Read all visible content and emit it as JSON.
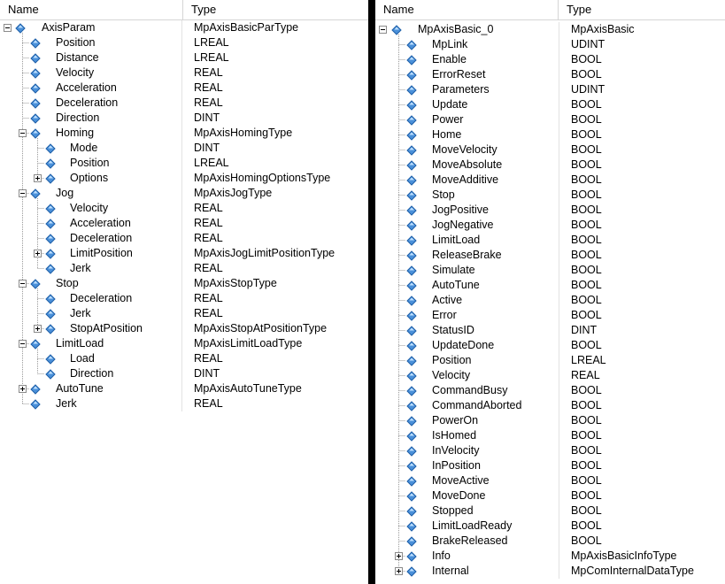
{
  "left_panel": {
    "columns": {
      "name": "Name",
      "type": "Type"
    },
    "rows": [
      {
        "name": "AxisParam",
        "type": "MpAxisBasicParType",
        "level": 0,
        "toggle": "minus",
        "last": false
      },
      {
        "name": "Position",
        "type": "LREAL",
        "level": 1,
        "toggle": "",
        "last": false
      },
      {
        "name": "Distance",
        "type": "LREAL",
        "level": 1,
        "toggle": "",
        "last": false
      },
      {
        "name": "Velocity",
        "type": "REAL",
        "level": 1,
        "toggle": "",
        "last": false
      },
      {
        "name": "Acceleration",
        "type": "REAL",
        "level": 1,
        "toggle": "",
        "last": false
      },
      {
        "name": "Deceleration",
        "type": "REAL",
        "level": 1,
        "toggle": "",
        "last": false
      },
      {
        "name": "Direction",
        "type": "DINT",
        "level": 1,
        "toggle": "",
        "last": false
      },
      {
        "name": "Homing",
        "type": "MpAxisHomingType",
        "level": 1,
        "toggle": "minus",
        "last": false
      },
      {
        "name": "Mode",
        "type": "DINT",
        "level": 2,
        "toggle": "",
        "last": false
      },
      {
        "name": "Position",
        "type": "LREAL",
        "level": 2,
        "toggle": "",
        "last": false
      },
      {
        "name": "Options",
        "type": "MpAxisHomingOptionsType",
        "level": 2,
        "toggle": "plus",
        "last": true
      },
      {
        "name": "Jog",
        "type": "MpAxisJogType",
        "level": 1,
        "toggle": "minus",
        "last": false
      },
      {
        "name": "Velocity",
        "type": "REAL",
        "level": 2,
        "toggle": "",
        "last": false
      },
      {
        "name": "Acceleration",
        "type": "REAL",
        "level": 2,
        "toggle": "",
        "last": false
      },
      {
        "name": "Deceleration",
        "type": "REAL",
        "level": 2,
        "toggle": "",
        "last": false
      },
      {
        "name": "LimitPosition",
        "type": "MpAxisJogLimitPositionType",
        "level": 2,
        "toggle": "plus",
        "last": false
      },
      {
        "name": "Jerk",
        "type": "REAL",
        "level": 2,
        "toggle": "",
        "last": true
      },
      {
        "name": "Stop",
        "type": "MpAxisStopType",
        "level": 1,
        "toggle": "minus",
        "last": false
      },
      {
        "name": "Deceleration",
        "type": "REAL",
        "level": 2,
        "toggle": "",
        "last": false
      },
      {
        "name": "Jerk",
        "type": "REAL",
        "level": 2,
        "toggle": "",
        "last": false
      },
      {
        "name": "StopAtPosition",
        "type": "MpAxisStopAtPositionType",
        "level": 2,
        "toggle": "plus",
        "last": true
      },
      {
        "name": "LimitLoad",
        "type": "MpAxisLimitLoadType",
        "level": 1,
        "toggle": "minus",
        "last": false
      },
      {
        "name": "Load",
        "type": "REAL",
        "level": 2,
        "toggle": "",
        "last": false
      },
      {
        "name": "Direction",
        "type": "DINT",
        "level": 2,
        "toggle": "",
        "last": true
      },
      {
        "name": "AutoTune",
        "type": "MpAxisAutoTuneType",
        "level": 1,
        "toggle": "plus",
        "last": false
      },
      {
        "name": "Jerk",
        "type": "REAL",
        "level": 1,
        "toggle": "",
        "last": true
      }
    ]
  },
  "right_panel": {
    "columns": {
      "name": "Name",
      "type": "Type"
    },
    "rows": [
      {
        "name": "MpAxisBasic_0",
        "type": "MpAxisBasic",
        "level": 0,
        "toggle": "minus",
        "last": false
      },
      {
        "name": "MpLink",
        "type": "UDINT",
        "level": 1,
        "toggle": "",
        "last": false
      },
      {
        "name": "Enable",
        "type": "BOOL",
        "level": 1,
        "toggle": "",
        "last": false
      },
      {
        "name": "ErrorReset",
        "type": "BOOL",
        "level": 1,
        "toggle": "",
        "last": false
      },
      {
        "name": "Parameters",
        "type": "UDINT",
        "level": 1,
        "toggle": "",
        "last": false
      },
      {
        "name": "Update",
        "type": "BOOL",
        "level": 1,
        "toggle": "",
        "last": false
      },
      {
        "name": "Power",
        "type": "BOOL",
        "level": 1,
        "toggle": "",
        "last": false
      },
      {
        "name": "Home",
        "type": "BOOL",
        "level": 1,
        "toggle": "",
        "last": false
      },
      {
        "name": "MoveVelocity",
        "type": "BOOL",
        "level": 1,
        "toggle": "",
        "last": false
      },
      {
        "name": "MoveAbsolute",
        "type": "BOOL",
        "level": 1,
        "toggle": "",
        "last": false
      },
      {
        "name": "MoveAdditive",
        "type": "BOOL",
        "level": 1,
        "toggle": "",
        "last": false
      },
      {
        "name": "Stop",
        "type": "BOOL",
        "level": 1,
        "toggle": "",
        "last": false
      },
      {
        "name": "JogPositive",
        "type": "BOOL",
        "level": 1,
        "toggle": "",
        "last": false
      },
      {
        "name": "JogNegative",
        "type": "BOOL",
        "level": 1,
        "toggle": "",
        "last": false
      },
      {
        "name": "LimitLoad",
        "type": "BOOL",
        "level": 1,
        "toggle": "",
        "last": false
      },
      {
        "name": "ReleaseBrake",
        "type": "BOOL",
        "level": 1,
        "toggle": "",
        "last": false
      },
      {
        "name": "Simulate",
        "type": "BOOL",
        "level": 1,
        "toggle": "",
        "last": false
      },
      {
        "name": "AutoTune",
        "type": "BOOL",
        "level": 1,
        "toggle": "",
        "last": false
      },
      {
        "name": "Active",
        "type": "BOOL",
        "level": 1,
        "toggle": "",
        "last": false
      },
      {
        "name": "Error",
        "type": "BOOL",
        "level": 1,
        "toggle": "",
        "last": false
      },
      {
        "name": "StatusID",
        "type": "DINT",
        "level": 1,
        "toggle": "",
        "last": false
      },
      {
        "name": "UpdateDone",
        "type": "BOOL",
        "level": 1,
        "toggle": "",
        "last": false
      },
      {
        "name": "Position",
        "type": "LREAL",
        "level": 1,
        "toggle": "",
        "last": false
      },
      {
        "name": "Velocity",
        "type": "REAL",
        "level": 1,
        "toggle": "",
        "last": false
      },
      {
        "name": "CommandBusy",
        "type": "BOOL",
        "level": 1,
        "toggle": "",
        "last": false
      },
      {
        "name": "CommandAborted",
        "type": "BOOL",
        "level": 1,
        "toggle": "",
        "last": false
      },
      {
        "name": "PowerOn",
        "type": "BOOL",
        "level": 1,
        "toggle": "",
        "last": false
      },
      {
        "name": "IsHomed",
        "type": "BOOL",
        "level": 1,
        "toggle": "",
        "last": false
      },
      {
        "name": "InVelocity",
        "type": "BOOL",
        "level": 1,
        "toggle": "",
        "last": false
      },
      {
        "name": "InPosition",
        "type": "BOOL",
        "level": 1,
        "toggle": "",
        "last": false
      },
      {
        "name": "MoveActive",
        "type": "BOOL",
        "level": 1,
        "toggle": "",
        "last": false
      },
      {
        "name": "MoveDone",
        "type": "BOOL",
        "level": 1,
        "toggle": "",
        "last": false
      },
      {
        "name": "Stopped",
        "type": "BOOL",
        "level": 1,
        "toggle": "",
        "last": false
      },
      {
        "name": "LimitLoadReady",
        "type": "BOOL",
        "level": 1,
        "toggle": "",
        "last": false
      },
      {
        "name": "BrakeReleased",
        "type": "BOOL",
        "level": 1,
        "toggle": "",
        "last": false
      },
      {
        "name": "Info",
        "type": "MpAxisBasicInfoType",
        "level": 1,
        "toggle": "plus",
        "last": false
      },
      {
        "name": "Internal",
        "type": "MpComInternalDataType",
        "level": 1,
        "toggle": "plus",
        "last": true
      }
    ]
  },
  "colors": {
    "icon_fill": "#4a90d9",
    "icon_stroke": "#1f5fa8",
    "tree_line": "#9a9a9a",
    "grid": "#e2e2e2"
  },
  "icons": {
    "variable": "diamond-variable-icon",
    "expand": "plus-box-icon",
    "collapse": "minus-box-icon"
  }
}
